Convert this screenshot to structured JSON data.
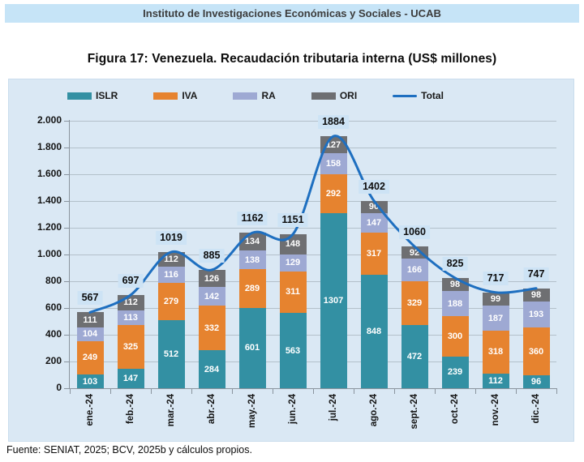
{
  "page": {
    "header": "Instituto de Investigaciones Económicas y Sociales - UCAB",
    "figure_title": "Figura 17: Venezuela. Recaudación tributaria interna (US$ millones)",
    "source": "Fuente: SENIAT, 2025; BCV, 2025b y cálculos propios."
  },
  "colors": {
    "header_bg": "#c6e4f7",
    "chart_bg": "#dae8f4",
    "islr": "#3390a3",
    "iva": "#e6832f",
    "ra": "#9ea9d3",
    "ori": "#6e6f72",
    "total_line": "#1e6fc0",
    "total_label_bg": "#cde3f5"
  },
  "chart_data": {
    "type": "bar",
    "stacked": true,
    "title": "Figura 17: Venezuela. Recaudación tributaria interna (US$ millones)",
    "xlabel": "",
    "ylabel": "",
    "ylim": [
      0,
      2000
    ],
    "ytick_step": 200,
    "ytick_labels": [
      "0",
      "200",
      "400",
      "600",
      "800",
      "1.000",
      "1.200",
      "1.400",
      "1.600",
      "1.800",
      "2.000"
    ],
    "grid": true,
    "legend_position": "top",
    "categories": [
      "ene.-24",
      "feb.-24",
      "mar.-24",
      "abr.-24",
      "may.-24",
      "jun.-24",
      "jul.-24",
      "ago.-24",
      "sept.-24",
      "oct.-24",
      "nov.-24",
      "dic.-24"
    ],
    "series": [
      {
        "name": "ISLR",
        "color_key": "islr",
        "values": [
          103,
          147,
          512,
          284,
          601,
          563,
          1307,
          848,
          472,
          239,
          112,
          96
        ]
      },
      {
        "name": "IVA",
        "color_key": "iva",
        "values": [
          249,
          325,
          279,
          332,
          289,
          311,
          292,
          317,
          329,
          300,
          318,
          360
        ]
      },
      {
        "name": "RA",
        "color_key": "ra",
        "values": [
          104,
          113,
          116,
          142,
          138,
          129,
          158,
          147,
          166,
          188,
          187,
          193
        ]
      },
      {
        "name": "ORI",
        "color_key": "ori",
        "values": [
          111,
          112,
          112,
          126,
          134,
          148,
          127,
          90,
          92,
          98,
          99,
          98
        ]
      }
    ],
    "line_series": {
      "name": "Total",
      "values": [
        567,
        697,
        1019,
        885,
        1162,
        1151,
        1884,
        1402,
        1060,
        825,
        717,
        747
      ]
    }
  }
}
